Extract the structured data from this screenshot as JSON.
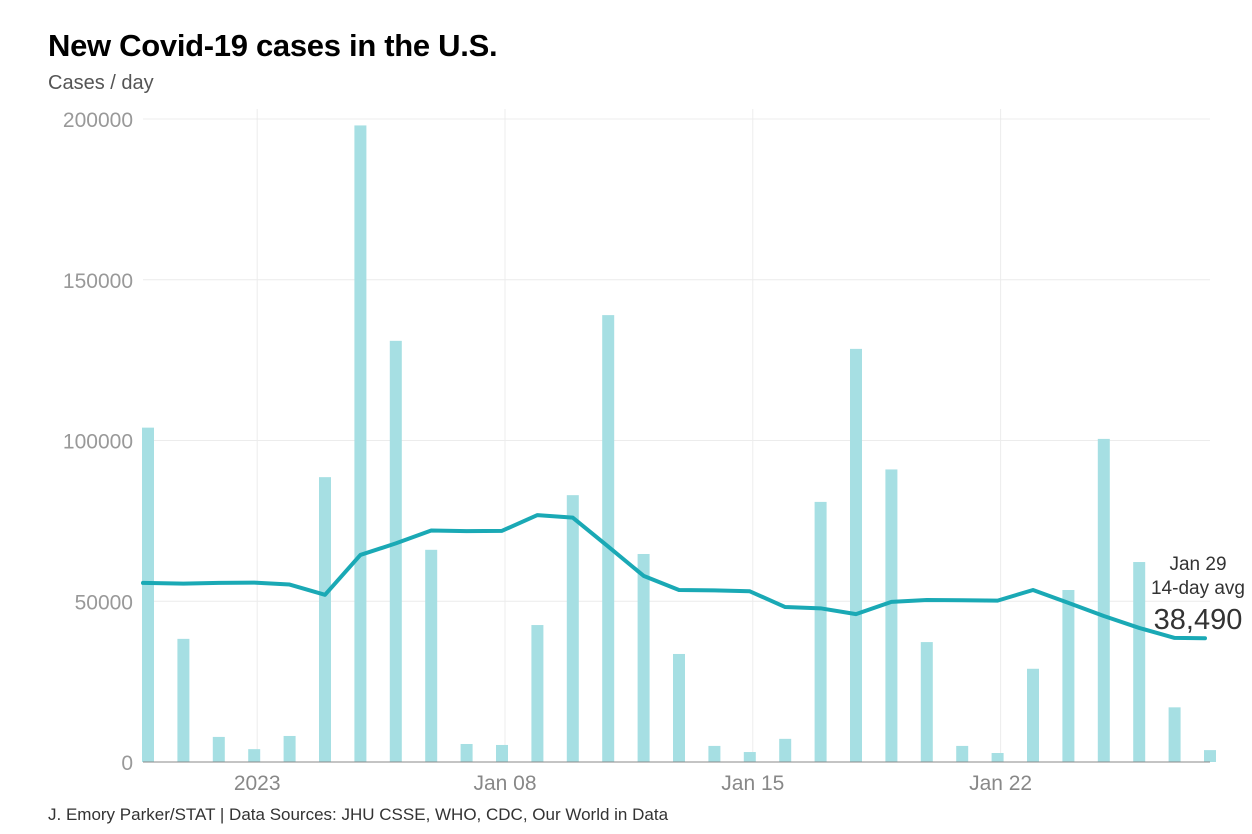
{
  "chart_data": {
    "type": "bar+line",
    "title": "New Covid-19 cases in the U.S.",
    "subtitle": "Cases / day",
    "source": "J. Emory Parker/STAT | Data Sources: JHU CSSE, WHO, CDC, Our World in Data",
    "ylim": [
      0,
      200000
    ],
    "yticks": [
      "0",
      "50000",
      "100000",
      "150000",
      "200000"
    ],
    "xticks": [
      {
        "label": "2023",
        "date": "2023-01-01"
      },
      {
        "label": "Jan 08",
        "date": "2023-01-08"
      },
      {
        "label": "Jan 15",
        "date": "2023-01-15"
      },
      {
        "label": "Jan 22",
        "date": "2023-01-22"
      }
    ],
    "grid": true,
    "dates": [
      "2022-12-29",
      "2022-12-30",
      "2022-12-31",
      "2023-01-01",
      "2023-01-02",
      "2023-01-03",
      "2023-01-04",
      "2023-01-05",
      "2023-01-06",
      "2023-01-07",
      "2023-01-08",
      "2023-01-09",
      "2023-01-10",
      "2023-01-11",
      "2023-01-12",
      "2023-01-13",
      "2023-01-14",
      "2023-01-15",
      "2023-01-16",
      "2023-01-17",
      "2023-01-18",
      "2023-01-19",
      "2023-01-20",
      "2023-01-21",
      "2023-01-22",
      "2023-01-23",
      "2023-01-24",
      "2023-01-25",
      "2023-01-26",
      "2023-01-27",
      "2023-01-28"
    ],
    "series": [
      {
        "type": "bar",
        "color": "#a6dfe3",
        "values": [
          104000,
          38300,
          7800,
          4000,
          8100,
          88600,
          198000,
          131000,
          66000,
          5600,
          5300,
          42600,
          83000,
          139000,
          64700,
          33600,
          5000,
          3100,
          7200,
          80900,
          128500,
          91000,
          37300,
          5000,
          2800,
          29000,
          53500,
          100500,
          62200,
          17000,
          3700
        ]
      },
      {
        "type": "line",
        "color": "#1aa9b5",
        "values": [
          55700,
          55500,
          55700,
          55800,
          55200,
          52000,
          64400,
          68000,
          72000,
          71800,
          71900,
          76800,
          76000,
          67000,
          57900,
          53500,
          53400,
          53100,
          48200,
          47800,
          46000,
          49800,
          50400,
          50300,
          50200,
          53500,
          49500,
          45400,
          41700,
          38600,
          38490
        ]
      }
    ],
    "annotation": {
      "date_label": "Jan 29",
      "label": "14-day avg",
      "value": "38,490"
    }
  }
}
